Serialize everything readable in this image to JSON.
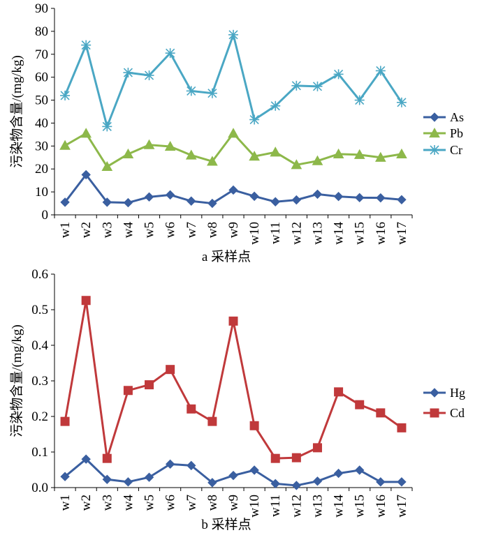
{
  "chart_data": [
    {
      "type": "line",
      "panel": "a",
      "xlabel": "a 采样点",
      "ylabel": "污染物含量/(mg/kg)",
      "ylim": [
        0,
        90
      ],
      "yticks": [
        0,
        10,
        20,
        30,
        40,
        50,
        60,
        70,
        80,
        90
      ],
      "ytick_labels": [
        "0",
        "10",
        "20",
        "30",
        "40",
        "50",
        "60",
        "70",
        "80",
        "90"
      ],
      "categories": [
        "w1",
        "w2",
        "w3",
        "w4",
        "w5",
        "w6",
        "w7",
        "w8",
        "w9",
        "w10",
        "w11",
        "w12",
        "w13",
        "w14",
        "w15",
        "w16",
        "w17"
      ],
      "legend_position": "right",
      "series": [
        {
          "name": "As",
          "color": "#3a5fa0",
          "marker": "diamond",
          "values": [
            5.5,
            17.5,
            5.5,
            5.3,
            7.8,
            8.7,
            6.0,
            5.0,
            10.8,
            8.1,
            5.7,
            6.5,
            9.0,
            8.0,
            7.5,
            7.4,
            6.6
          ]
        },
        {
          "name": "Pb",
          "color": "#8db84a",
          "marker": "triangle",
          "values": [
            30.2,
            35.5,
            21.0,
            26.5,
            30.5,
            29.8,
            26.0,
            23.3,
            35.5,
            25.5,
            27.3,
            21.8,
            23.5,
            26.5,
            26.2,
            25.0,
            26.5
          ]
        },
        {
          "name": "Cr",
          "color": "#4aa7c4",
          "marker": "star",
          "values": [
            52.0,
            74.0,
            38.5,
            62.0,
            60.8,
            70.5,
            54.0,
            53.0,
            78.5,
            41.5,
            47.5,
            56.3,
            56.0,
            61.3,
            50.0,
            62.8,
            49.0
          ]
        }
      ]
    },
    {
      "type": "line",
      "panel": "b",
      "xlabel": "b 采样点",
      "ylabel": "污染物含量/(mg/kg)",
      "ylim": [
        0,
        0.6
      ],
      "yticks": [
        0,
        0.1,
        0.2,
        0.3,
        0.4,
        0.5,
        0.6
      ],
      "ytick_labels": [
        "0.0",
        "0.1",
        "0.2",
        "0.3",
        "0.4",
        "0.5",
        "0.6"
      ],
      "categories": [
        "w1",
        "w2",
        "w3",
        "w4",
        "w5",
        "w6",
        "w7",
        "w8",
        "w9",
        "w10",
        "w11",
        "w12",
        "w13",
        "w14",
        "w15",
        "w16",
        "w17"
      ],
      "legend_position": "right",
      "series": [
        {
          "name": "Hg",
          "color": "#3a5fa0",
          "marker": "diamond",
          "values": [
            0.031,
            0.08,
            0.023,
            0.016,
            0.029,
            0.066,
            0.062,
            0.014,
            0.034,
            0.049,
            0.011,
            0.006,
            0.018,
            0.04,
            0.049,
            0.016,
            0.016
          ]
        },
        {
          "name": "Cd",
          "color": "#c0393b",
          "marker": "square",
          "values": [
            0.186,
            0.526,
            0.082,
            0.273,
            0.289,
            0.332,
            0.221,
            0.186,
            0.468,
            0.174,
            0.082,
            0.084,
            0.112,
            0.269,
            0.233,
            0.21,
            0.168
          ]
        }
      ]
    }
  ]
}
